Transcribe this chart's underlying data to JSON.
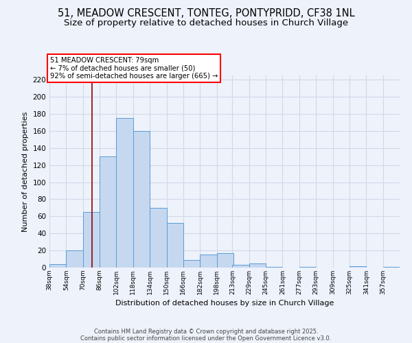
{
  "title": "51, MEADOW CRESCENT, TONTEG, PONTYPRIDD, CF38 1NL",
  "subtitle": "Size of property relative to detached houses in Church Village",
  "xlabel": "Distribution of detached houses by size in Church Village",
  "ylabel": "Number of detached properties",
  "bin_labels": [
    "38sqm",
    "54sqm",
    "70sqm",
    "86sqm",
    "102sqm",
    "118sqm",
    "134sqm",
    "150sqm",
    "166sqm",
    "182sqm",
    "198sqm",
    "213sqm",
    "229sqm",
    "245sqm",
    "261sqm",
    "277sqm",
    "293sqm",
    "309sqm",
    "325sqm",
    "341sqm",
    "357sqm"
  ],
  "bin_edges": [
    38,
    54,
    70,
    86,
    102,
    118,
    134,
    150,
    166,
    182,
    198,
    213,
    229,
    245,
    261,
    277,
    293,
    309,
    325,
    341,
    357
  ],
  "bar_values": [
    4,
    20,
    65,
    130,
    175,
    160,
    70,
    52,
    9,
    15,
    17,
    3,
    5,
    1,
    0,
    1,
    0,
    0,
    2,
    0,
    1
  ],
  "bar_color": "#c5d8f0",
  "bar_edge_color": "#5b9bd5",
  "vline_x": 79,
  "vline_color": "#8b0000",
  "ylim": [
    0,
    225
  ],
  "yticks": [
    0,
    20,
    40,
    60,
    80,
    100,
    120,
    140,
    160,
    180,
    200,
    220
  ],
  "annotation_title": "51 MEADOW CRESCENT: 79sqm",
  "annotation_line1": "← 7% of detached houses are smaller (50)",
  "annotation_line2": "92% of semi-detached houses are larger (665) →",
  "annotation_box_color": "white",
  "annotation_box_edge": "red",
  "footnote1": "Contains HM Land Registry data © Crown copyright and database right 2025.",
  "footnote2": "Contains public sector information licensed under the Open Government Licence v3.0.",
  "bg_color": "#eef2fb",
  "grid_color": "#d0d8e8",
  "title_fontsize": 10.5,
  "subtitle_fontsize": 9.5
}
